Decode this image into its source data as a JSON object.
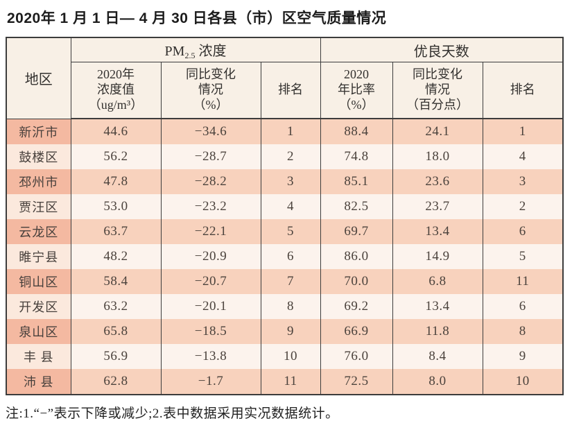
{
  "page": {
    "title": "2020年 1 月 1 日— 4 月 30 日各县（市）区空气质量情况",
    "footnote": "注:1.“−”表示下降或减少;2.表中数据采用实况数据统计。"
  },
  "colors": {
    "header_bg": "#f8f0e6",
    "row_odd_region_bg": "#f4b9a1",
    "row_odd_bg": "#f8d2bd",
    "row_even_region_bg": "#fbe9dd",
    "row_even_bg": "#fcf3ed",
    "border": "#3c3c3c",
    "text": "#4b423c"
  },
  "table": {
    "region_header": "地区",
    "group_pm25": {
      "prefix": "PM",
      "subscript": "2.5",
      "suffix": " 浓度"
    },
    "group_good_days": "优良天数",
    "sub_headers": {
      "pm25_value": "2020年\n浓度值\n（ug/m³）",
      "pm25_change": "同比变化\n情况\n（%）",
      "pm25_rank": "排名",
      "good_ratio": "2020\n年比率\n（%）",
      "good_change": "同比变化\n情况\n（百分点）",
      "good_rank": "排名"
    },
    "rows": [
      [
        "新沂市",
        "44.6",
        "−34.6",
        "1",
        "88.4",
        "24.1",
        "1"
      ],
      [
        "鼓楼区",
        "56.2",
        "−28.7",
        "2",
        "74.8",
        "18.0",
        "4"
      ],
      [
        "邳州市",
        "47.8",
        "−28.2",
        "3",
        "85.1",
        "23.6",
        "3"
      ],
      [
        "贾汪区",
        "53.0",
        "−23.2",
        "4",
        "82.5",
        "23.7",
        "2"
      ],
      [
        "云龙区",
        "63.7",
        "−22.1",
        "5",
        "69.7",
        "13.4",
        "6"
      ],
      [
        "睢宁县",
        "48.2",
        "−20.9",
        "6",
        "86.0",
        "14.9",
        "5"
      ],
      [
        "铜山区",
        "58.4",
        "−20.7",
        "7",
        "70.0",
        "6.8",
        "11"
      ],
      [
        "开发区",
        "63.2",
        "−20.1",
        "8",
        "69.2",
        "13.4",
        "6"
      ],
      [
        "泉山区",
        "65.8",
        "−18.5",
        "9",
        "66.9",
        "11.8",
        "8"
      ],
      [
        "丰 县",
        "56.9",
        "−13.8",
        "10",
        "76.0",
        "8.4",
        "9"
      ],
      [
        "沛 县",
        "62.8",
        "−1.7",
        "11",
        "72.5",
        "8.0",
        "10"
      ]
    ]
  }
}
